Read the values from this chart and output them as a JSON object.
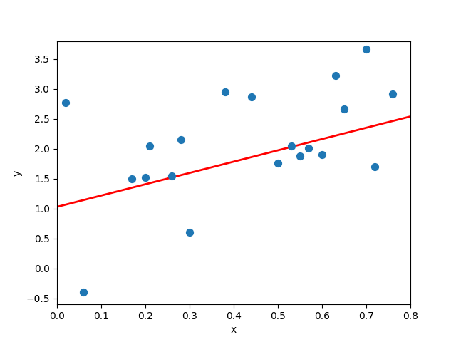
{
  "x": [
    0.02,
    0.06,
    0.17,
    0.2,
    0.21,
    0.26,
    0.28,
    0.3,
    0.38,
    0.44,
    0.5,
    0.53,
    0.55,
    0.57,
    0.6,
    0.63,
    0.65,
    0.7,
    0.72,
    0.76
  ],
  "y": [
    2.77,
    -0.4,
    1.5,
    1.52,
    2.05,
    1.55,
    2.15,
    0.6,
    2.95,
    2.87,
    1.76,
    2.05,
    1.88,
    2.01,
    1.9,
    3.22,
    2.67,
    3.67,
    1.7,
    2.91
  ],
  "line_x": [
    0.0,
    0.8
  ],
  "line_y": [
    1.03,
    2.54
  ],
  "dot_color": "#1f77b4",
  "line_color": "red",
  "xlabel": "x",
  "ylabel": "y",
  "dot_size": 50,
  "xlim": [
    0.0,
    0.8
  ],
  "ylim": [
    -0.6,
    3.8
  ]
}
